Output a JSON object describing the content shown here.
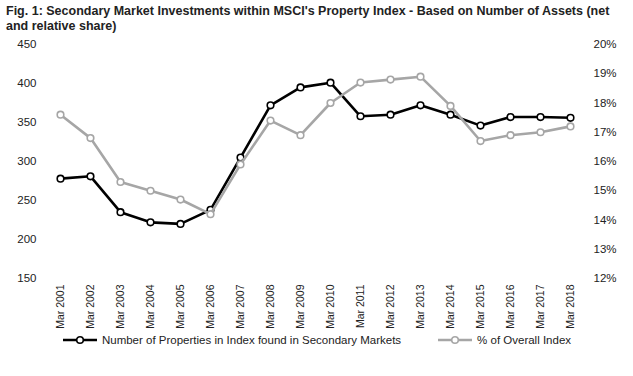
{
  "chart_data": {
    "type": "line",
    "title": "Fig. 1: Secondary Market Investments within MSCI's Property Index - Based on Number of Assets (net and relative share)",
    "categories": [
      "Mar 2001",
      "Mar 2002",
      "Mar 2003",
      "Mar 2004",
      "Mar 2005",
      "Mar 2006",
      "Mar 2007",
      "Mar 2008",
      "Mar 2009",
      "Mar 2010",
      "Mar 2011",
      "Mar 2012",
      "Mar 2013",
      "Mar 2014",
      "Mar 2015",
      "Mar 2016",
      "Mar 2017",
      "Mar 2018"
    ],
    "series": [
      {
        "name": "Number of Properties in Index found in Secondary Markets",
        "color": "#000000",
        "marker": "circle",
        "line_style": "solid",
        "values": [
          278,
          281,
          235,
          222,
          220,
          238,
          305,
          372,
          395,
          401,
          358,
          360,
          372,
          360,
          346,
          357,
          357,
          356
        ]
      },
      {
        "name": "% of Overall Index",
        "color": "#a6a6a6",
        "marker": "circle",
        "line_style": "solid",
        "axis": "y2",
        "values": [
          17.6,
          16.8,
          15.3,
          15.0,
          14.7,
          14.2,
          15.9,
          17.4,
          16.9,
          18.0,
          18.7,
          18.8,
          18.9,
          17.9,
          16.7,
          16.9,
          17.0,
          17.2
        ]
      }
    ],
    "ylim": [
      150,
      450
    ],
    "yticks": [
      150,
      200,
      250,
      300,
      350,
      400,
      450
    ],
    "y2lim": [
      12,
      20
    ],
    "y2ticks": [
      {
        "value": 12,
        "label": "12%"
      },
      {
        "value": 13,
        "label": "13%"
      },
      {
        "value": 14,
        "label": "14%"
      },
      {
        "value": 15,
        "label": "15%"
      },
      {
        "value": 16,
        "label": "16%"
      },
      {
        "value": 17,
        "label": "17%"
      },
      {
        "value": 18,
        "label": "18%"
      },
      {
        "value": 19,
        "label": "19%"
      },
      {
        "value": 20,
        "label": "20%"
      }
    ],
    "grid": false,
    "legend": "bottom"
  }
}
